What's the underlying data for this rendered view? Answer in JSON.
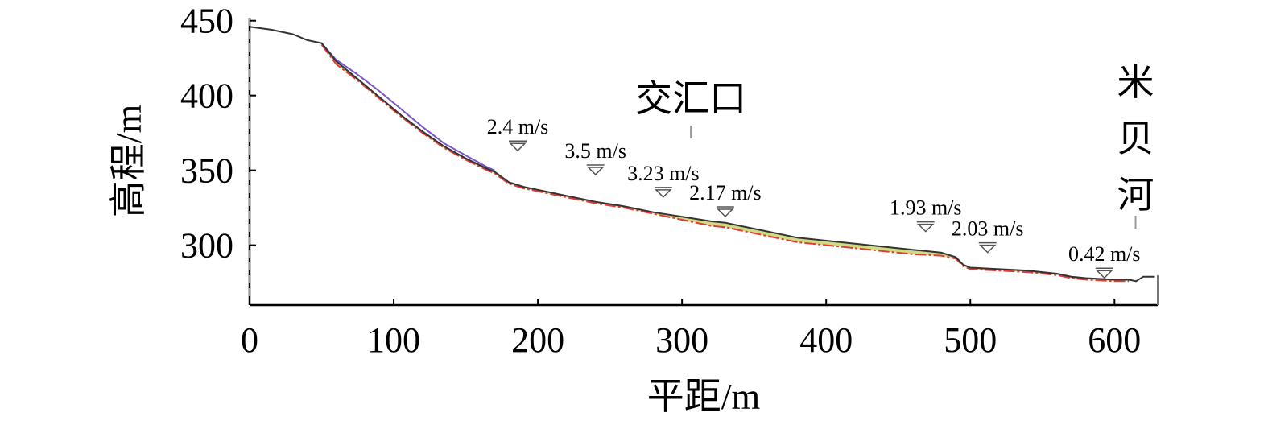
{
  "chart_data": {
    "type": "line",
    "title": "",
    "xlabel": "平距/m",
    "ylabel": "高程/m",
    "xlim": [
      0,
      630
    ],
    "ylim": [
      260,
      452
    ],
    "xticks": [
      0,
      100,
      200,
      300,
      400,
      500,
      600
    ],
    "yticks": [
      300,
      350,
      400,
      450
    ],
    "xtick_labels": [
      "0",
      "100",
      "200",
      "300",
      "400",
      "500",
      "600"
    ],
    "ytick_labels": [
      "300",
      "350",
      "400",
      "450"
    ],
    "colors": {
      "terrain": "#333333",
      "surface_a": "#7a57c9",
      "surface_b": "#e23b3b",
      "fill": "#c8d36a"
    },
    "series": [
      {
        "x": [
          0,
          15,
          30,
          40,
          50,
          60,
          75,
          90,
          105,
          120,
          135,
          150,
          165,
          170,
          180,
          190,
          200,
          220,
          240,
          260,
          280,
          300,
          320,
          330,
          340,
          360,
          380,
          400,
          420,
          440,
          460,
          480,
          490,
          495,
          500,
          520,
          540,
          560,
          570,
          580,
          600,
          610,
          615,
          620,
          628
        ],
        "y": [
          446,
          444,
          441,
          437,
          435,
          423,
          411,
          399,
          387,
          376,
          366,
          358,
          351,
          349,
          342,
          339,
          337,
          333,
          329,
          326,
          322,
          319,
          316,
          315,
          313,
          309,
          305,
          303,
          301,
          299,
          297,
          295,
          292,
          287,
          285,
          284,
          283,
          281,
          279,
          278,
          277,
          277,
          276,
          279,
          279
        ]
      },
      {
        "x": [
          50,
          60,
          75,
          90,
          105,
          120,
          135,
          150,
          165,
          170
        ],
        "y": [
          435,
          424,
          414,
          403,
          391,
          379,
          368,
          360,
          352,
          350
        ]
      },
      {
        "x": [
          50,
          60,
          75,
          90,
          105,
          120,
          135,
          150,
          165,
          170,
          180,
          190,
          200,
          220,
          240,
          260,
          280,
          300,
          320,
          330,
          340,
          360,
          380,
          400,
          420,
          440,
          460,
          480,
          490,
          495,
          500,
          520,
          540,
          560,
          570,
          580,
          600,
          610
        ],
        "y": [
          434,
          421,
          410,
          398,
          386,
          375,
          365,
          357,
          350,
          348,
          341,
          338,
          336,
          332,
          328,
          325,
          321,
          317,
          313,
          312,
          310,
          306,
          302,
          300,
          298,
          296,
          294,
          293,
          291,
          286,
          284,
          283,
          282,
          280,
          278,
          277,
          276,
          276
        ]
      }
    ],
    "velocity_markers": [
      {
        "x": 186,
        "y": 368,
        "label": "2.4 m/s"
      },
      {
        "x": 240,
        "y": 352,
        "label": "3.5 m/s"
      },
      {
        "x": 287,
        "y": 337,
        "label": "3.23 m/s"
      },
      {
        "x": 330,
        "y": 324,
        "label": "2.17 m/s"
      },
      {
        "x": 469,
        "y": 314,
        "label": "1.93 m/s"
      },
      {
        "x": 512,
        "y": 300,
        "label": "2.03 m/s"
      },
      {
        "x": 593,
        "y": 283,
        "label": "0.42 m/s"
      }
    ],
    "annotations": [
      {
        "x": 305,
        "text": "交汇口"
      },
      {
        "x": 618,
        "text": "米贝河"
      }
    ]
  }
}
